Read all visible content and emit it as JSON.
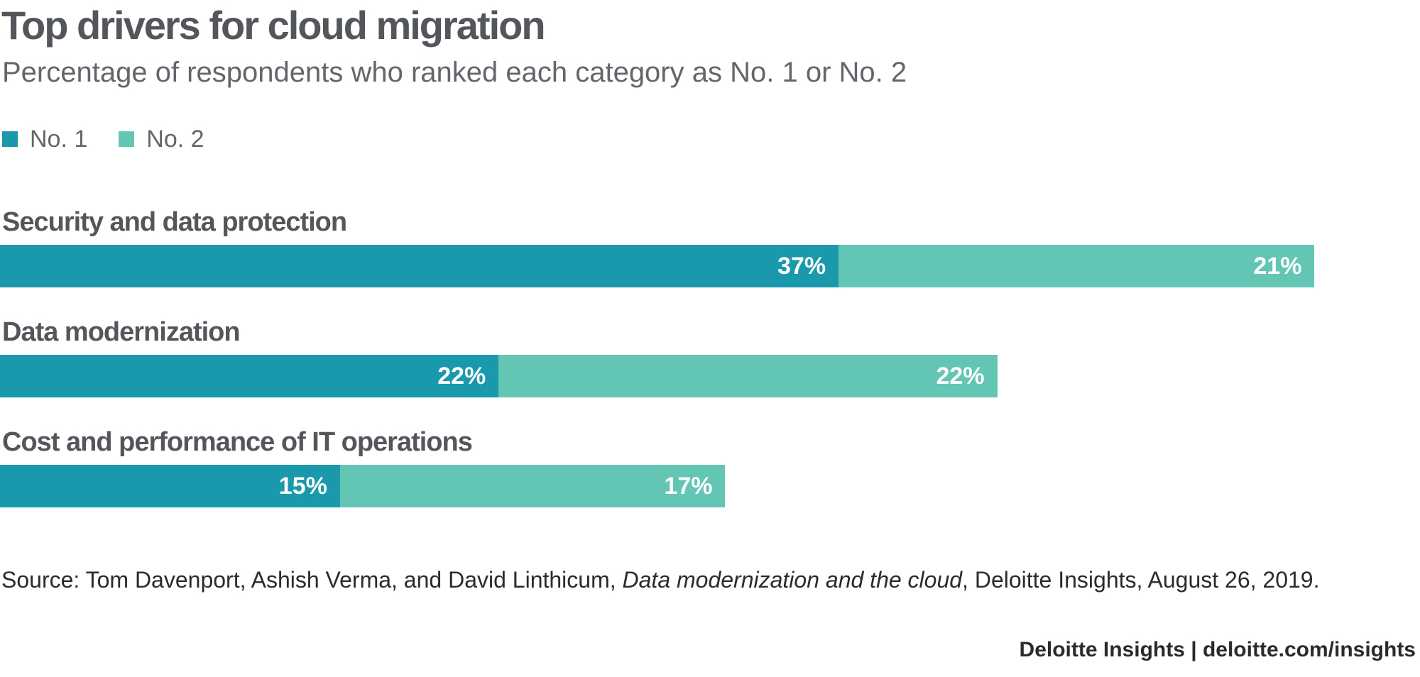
{
  "chart_data": {
    "type": "bar",
    "orientation": "horizontal",
    "stacked": true,
    "title": "Top drivers for cloud migration",
    "subtitle": "Percentage of respondents who ranked each category as No. 1 or No. 2",
    "categories": [
      "Security and data protection",
      "Data modernization",
      "Cost and performance of IT operations"
    ],
    "series": [
      {
        "name": "No. 1",
        "color": "#1a98ac",
        "values": [
          37,
          22,
          15
        ],
        "labels": [
          "37%",
          "22%",
          "15%"
        ]
      },
      {
        "name": "No. 2",
        "color": "#63c5b4",
        "values": [
          21,
          22,
          17
        ],
        "labels": [
          "21%",
          "22%",
          "17%"
        ]
      }
    ],
    "value_unit": "%",
    "xlim": [
      0,
      61.4
    ],
    "grid": false,
    "legend_position": "top-left"
  },
  "source": {
    "prefix": "Source: Tom Davenport, Ashish Verma, and David Linthicum, ",
    "publication": "Data modernization and the cloud",
    "suffix": ", Deloitte Insights, August 26, 2019."
  },
  "footer": "Deloitte Insights | deloitte.com/insights"
}
